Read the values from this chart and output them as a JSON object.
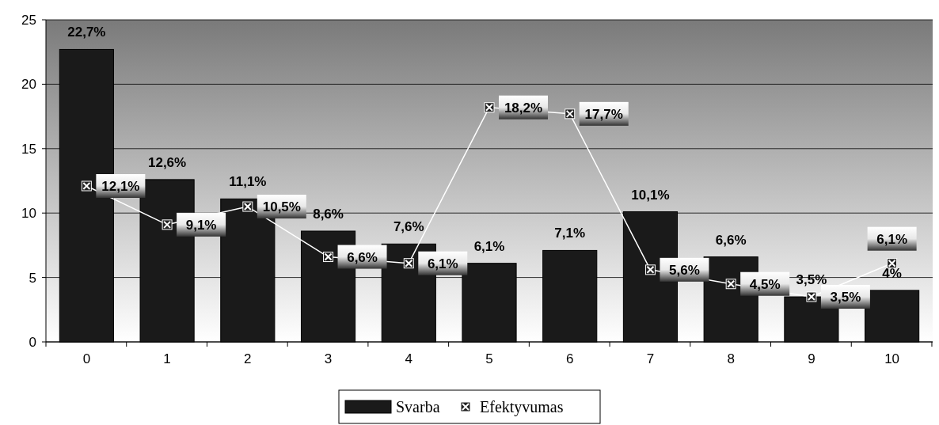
{
  "chart_data": {
    "type": "bar",
    "categories": [
      "0",
      "1",
      "2",
      "3",
      "4",
      "5",
      "6",
      "7",
      "8",
      "9",
      "10"
    ],
    "series": [
      {
        "name": "Svarba",
        "color": "#1a1a1a",
        "values": [
          22.7,
          12.6,
          11.1,
          8.6,
          7.6,
          6.1,
          7.1,
          10.1,
          6.6,
          3.5,
          4
        ],
        "value_labels": [
          "22,7%",
          "12,6%",
          "11,1%",
          "8,6%",
          "7,6%",
          "6,1%",
          "7,1%",
          "10,1%",
          "6,6%",
          "3,5%",
          "4%"
        ]
      },
      {
        "name": "Efektyvumas",
        "type": "line",
        "color": "#ffffff",
        "marker": "square",
        "values": [
          12.1,
          9.1,
          10.5,
          6.6,
          6.1,
          18.2,
          17.7,
          5.6,
          4.5,
          3.5,
          6.1
        ],
        "value_labels": [
          "12,1%",
          "9,1%",
          "10,5%",
          "6,6%",
          "6,1%",
          "18,2%",
          "17,7%",
          "5,6%",
          "4,5%",
          "3,5%",
          "6,1%"
        ]
      }
    ],
    "ylim": [
      0,
      25
    ],
    "yticks": [
      0,
      5,
      10,
      15,
      20,
      25
    ],
    "grid": "y",
    "legend": "bottom"
  }
}
